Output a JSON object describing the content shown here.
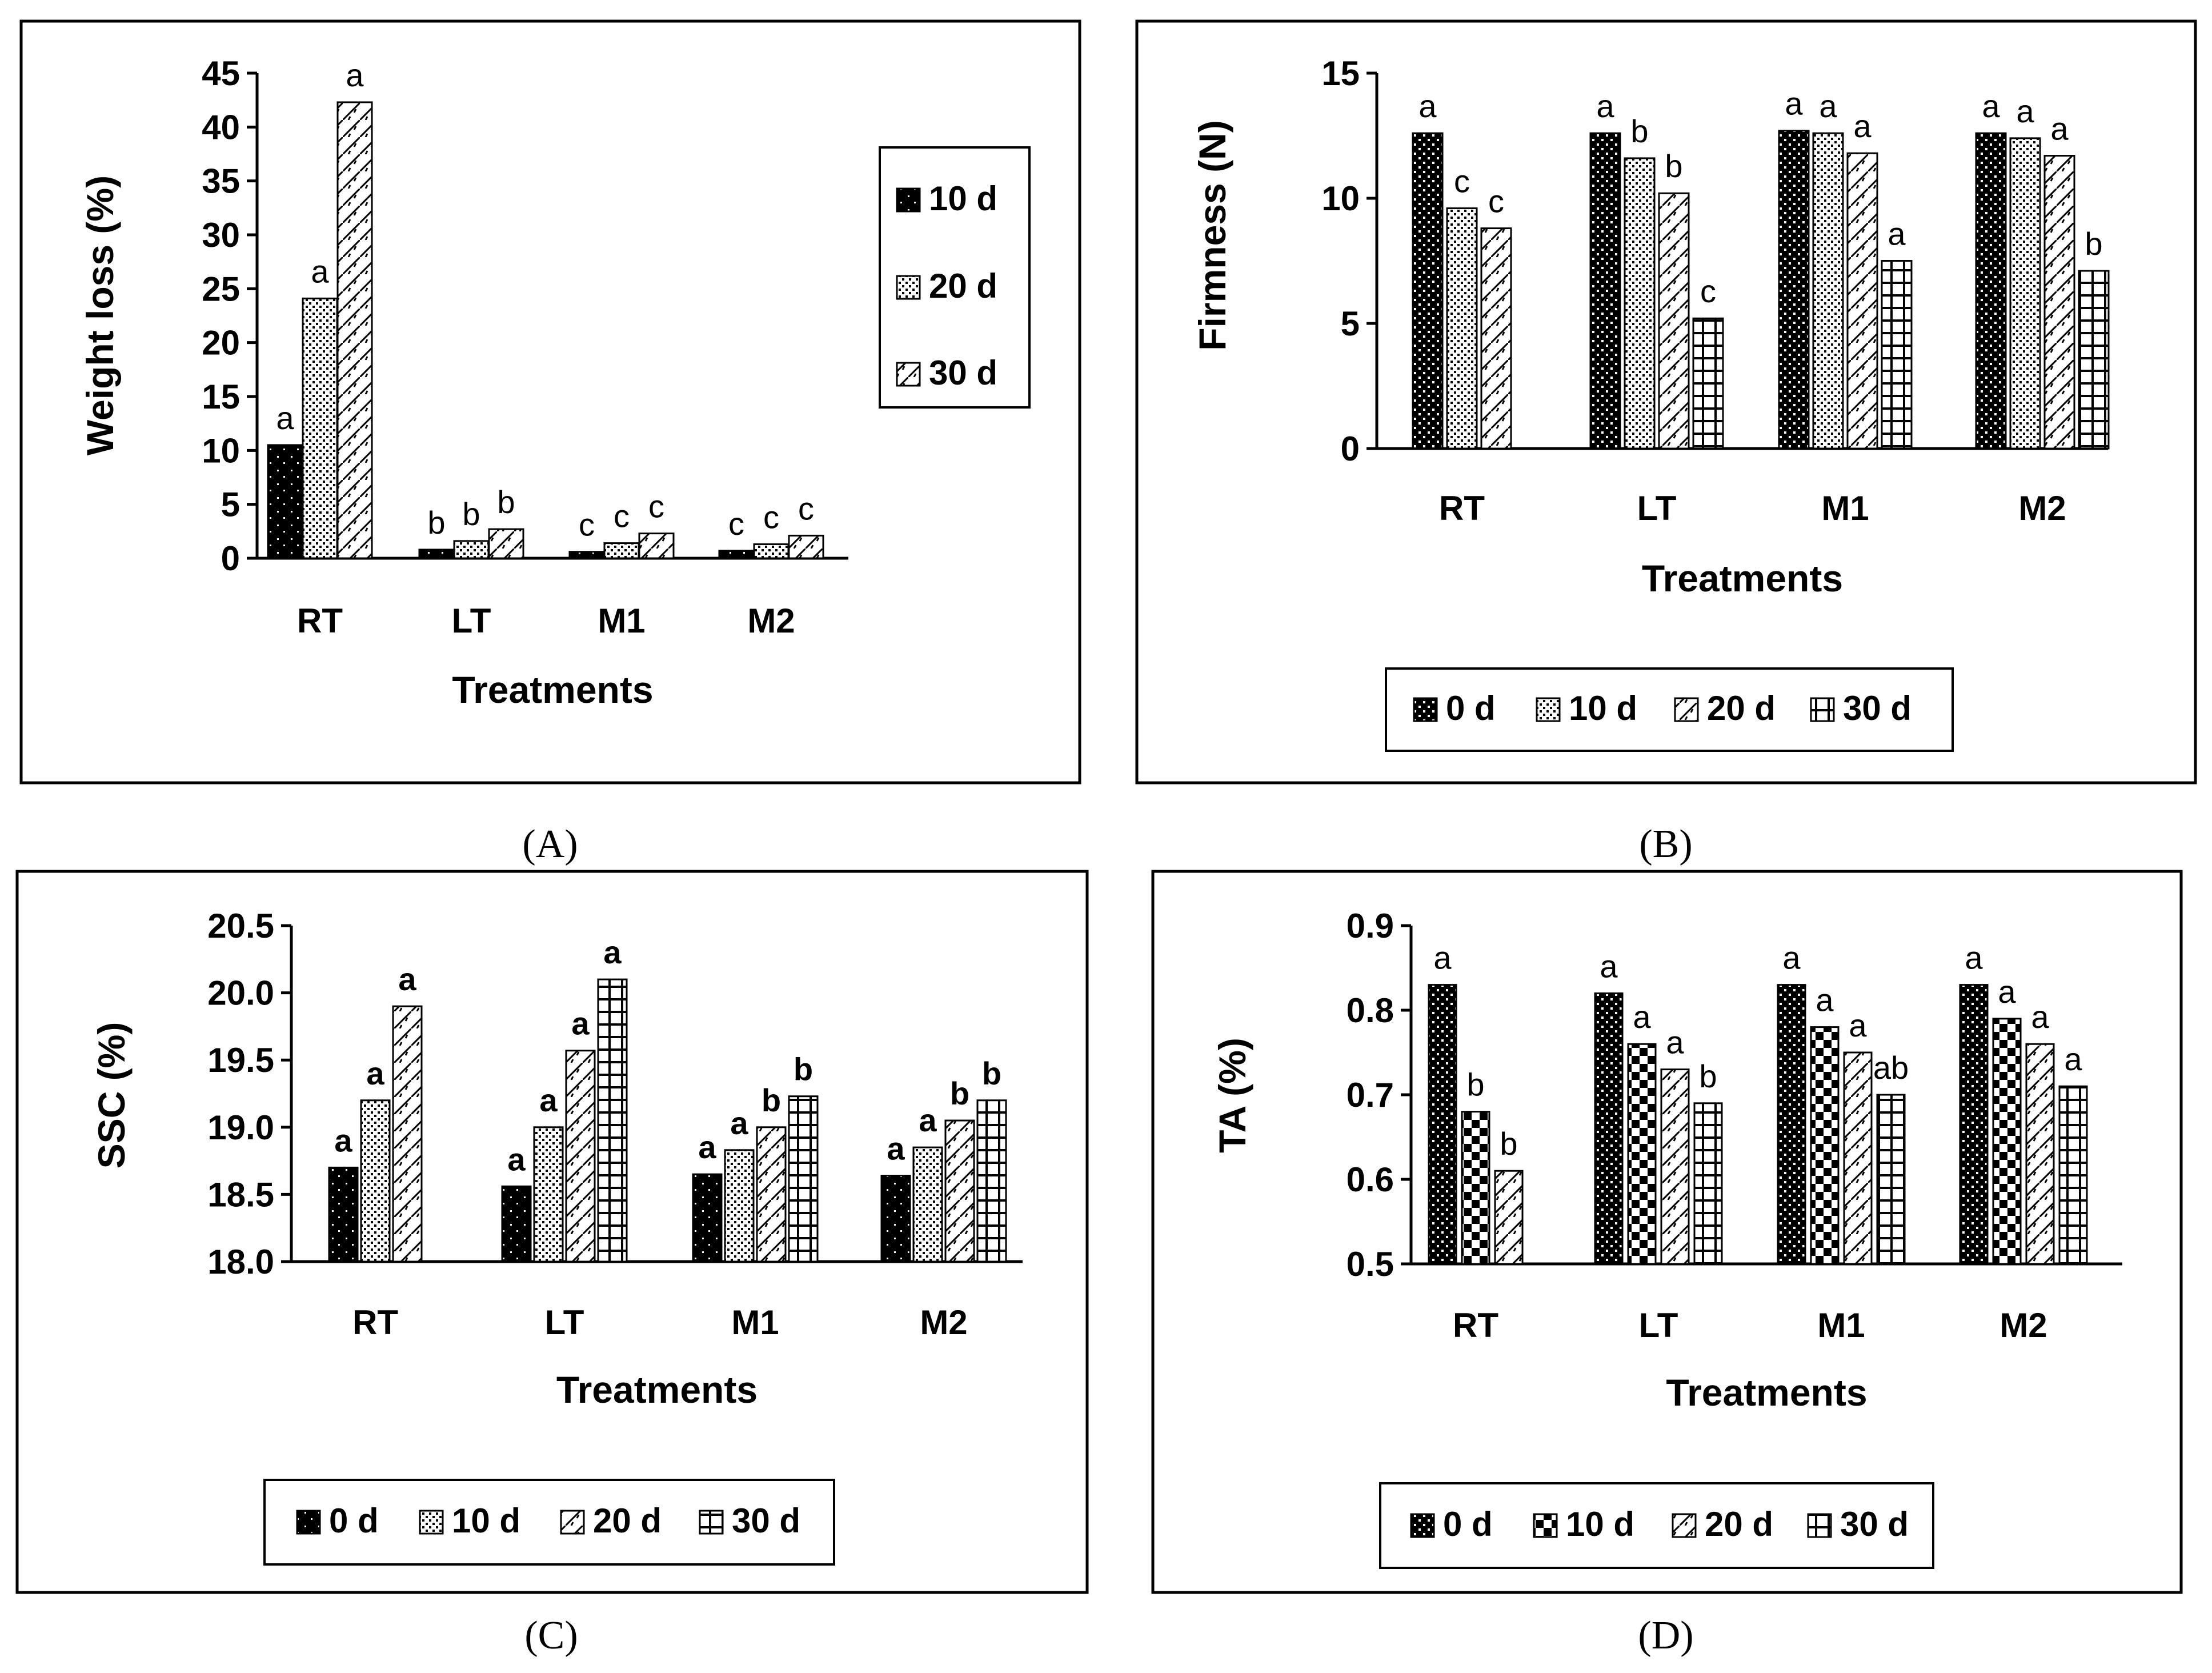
{
  "captions": [
    "(A)",
    "(B)",
    "(C)",
    "(D)"
  ],
  "chart_data": [
    {
      "type": "bar",
      "panel": "A",
      "ylabel": "Weight loss (%)",
      "xlabel": "Treatments",
      "categories": [
        "RT",
        "LT",
        "M1",
        "M2"
      ],
      "ylim": [
        0,
        45
      ],
      "yticks": [
        "0",
        "5",
        "10",
        "15",
        "20",
        "25",
        "30",
        "35",
        "40",
        "45"
      ],
      "legend_position": "right",
      "series": [
        {
          "name": "10 d",
          "pattern": "pat-solid",
          "values": [
            10.5,
            0.8,
            0.6,
            0.7
          ],
          "letters": [
            "a",
            "b",
            "c",
            "c"
          ]
        },
        {
          "name": "20 d",
          "pattern": "pat-dots",
          "values": [
            24.1,
            1.6,
            1.4,
            1.3
          ],
          "letters": [
            "a",
            "b",
            "c",
            "c"
          ]
        },
        {
          "name": "30 d",
          "pattern": "pat-diag",
          "values": [
            42.3,
            2.7,
            2.3,
            2.1
          ],
          "letters": [
            "a",
            "b",
            "c",
            "c"
          ]
        }
      ]
    },
    {
      "type": "bar",
      "panel": "B",
      "ylabel": "Firmness (N)",
      "xlabel": "Treatments",
      "categories": [
        "RT",
        "LT",
        "M1",
        "M2"
      ],
      "ylim": [
        0,
        15
      ],
      "yticks": [
        "0",
        "5",
        "10",
        "15"
      ],
      "legend_position": "bottom",
      "series": [
        {
          "name": "0 d",
          "pattern": "pat-bigdots",
          "values": [
            12.6,
            12.6,
            12.7,
            12.6
          ],
          "letters": [
            "a",
            "a",
            "a",
            "a"
          ]
        },
        {
          "name": "10 d",
          "pattern": "pat-dots",
          "values": [
            9.6,
            11.6,
            12.6,
            12.4
          ],
          "letters": [
            "c",
            "b",
            "a",
            "a"
          ]
        },
        {
          "name": "20 d",
          "pattern": "pat-diag",
          "values": [
            8.8,
            10.2,
            11.8,
            11.7
          ],
          "letters": [
            "c",
            "b",
            "a",
            "a"
          ]
        },
        {
          "name": "30 d",
          "pattern": "pat-grid",
          "values": [
            null,
            5.2,
            7.5,
            7.1
          ],
          "letters": [
            "",
            "c",
            "a",
            "b"
          ]
        }
      ]
    },
    {
      "type": "bar",
      "panel": "C",
      "ylabel": "SSC (%)",
      "xlabel": "Treatments",
      "categories": [
        "RT",
        "LT",
        "M1",
        "M2"
      ],
      "ylim": [
        18.0,
        20.5
      ],
      "yticks": [
        "18.0",
        "18.5",
        "19.0",
        "19.5",
        "20.0",
        "20.5"
      ],
      "legend_position": "bottom",
      "bold_letters": true,
      "series": [
        {
          "name": "0 d",
          "pattern": "pat-solid",
          "values": [
            18.7,
            18.56,
            18.65,
            18.64
          ],
          "letters": [
            "a",
            "a",
            "a",
            "a"
          ]
        },
        {
          "name": "10 d",
          "pattern": "pat-dots",
          "values": [
            19.2,
            19.0,
            18.83,
            18.85
          ],
          "letters": [
            "a",
            "a",
            "a",
            "a"
          ]
        },
        {
          "name": "20 d",
          "pattern": "pat-diag",
          "values": [
            19.9,
            19.57,
            19.0,
            19.05
          ],
          "letters": [
            "a",
            "a",
            "b",
            "b"
          ]
        },
        {
          "name": "30 d",
          "pattern": "pat-grid",
          "values": [
            null,
            20.1,
            19.23,
            19.2
          ],
          "letters": [
            "",
            "a",
            "b",
            "b"
          ]
        }
      ]
    },
    {
      "type": "bar",
      "panel": "D",
      "ylabel": "TA (%)",
      "xlabel": "Treatments",
      "categories": [
        "RT",
        "LT",
        "M1",
        "M2"
      ],
      "ylim": [
        0.5,
        0.9
      ],
      "yticks": [
        "0.5",
        "0.6",
        "0.7",
        "0.8",
        "0.9"
      ],
      "legend_position": "bottom",
      "series": [
        {
          "name": "0 d",
          "pattern": "pat-bigdots",
          "values": [
            0.83,
            0.82,
            0.83,
            0.83
          ],
          "letters": [
            "a",
            "a",
            "a",
            "a"
          ]
        },
        {
          "name": "10 d",
          "pattern": "pat-check",
          "values": [
            0.68,
            0.76,
            0.78,
            0.79
          ],
          "letters": [
            "b",
            "a",
            "a",
            "a"
          ]
        },
        {
          "name": "20 d",
          "pattern": "pat-diag",
          "values": [
            0.61,
            0.73,
            0.75,
            0.76
          ],
          "letters": [
            "b",
            "a",
            "a",
            "a"
          ]
        },
        {
          "name": "30 d",
          "pattern": "pat-grid",
          "values": [
            null,
            0.69,
            0.7,
            0.71
          ],
          "letters": [
            "",
            "b",
            "ab",
            "a"
          ]
        }
      ]
    }
  ]
}
